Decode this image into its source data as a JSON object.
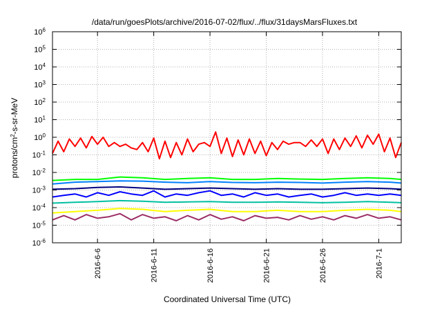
{
  "chart_data": {
    "type": "line",
    "title": "/data/run/goesPlots/archive/2016-07-02/flux/../flux/31daysMarsFluxes.txt",
    "xlabel": "Coordinated Universal Time (UTC)",
    "ylabel": {
      "pre": "protons/cm",
      "sup": "2",
      "post": "-s-sr-MeV"
    },
    "y_scale": "log",
    "ylim": [
      1e-06,
      1000000.0
    ],
    "xlim": [
      "2016-06-02",
      "2016-07-03"
    ],
    "grid": true,
    "legend": "none",
    "x_ticks": [
      {
        "date": "2016-06-06",
        "label": "2016-6-6"
      },
      {
        "date": "2016-06-11",
        "label": "2016-6-11"
      },
      {
        "date": "2016-06-16",
        "label": "2016-6-16"
      },
      {
        "date": "2016-06-21",
        "label": "2016-6-21"
      },
      {
        "date": "2016-06-26",
        "label": "2016-6-26"
      },
      {
        "date": "2016-07-01",
        "label": "2016-7-1"
      }
    ],
    "y_ticks": [
      {
        "value": 1e-06,
        "base": "10",
        "exp": "-6"
      },
      {
        "value": 1e-05,
        "base": "10",
        "exp": "-5"
      },
      {
        "value": 0.0001,
        "base": "10",
        "exp": "-4"
      },
      {
        "value": 0.001,
        "base": "10",
        "exp": "-3"
      },
      {
        "value": 0.01,
        "base": "10",
        "exp": "-2"
      },
      {
        "value": 0.1,
        "base": "10",
        "exp": "-1"
      },
      {
        "value": 1,
        "base": "10",
        "exp": "0"
      },
      {
        "value": 10,
        "base": "10",
        "exp": "1"
      },
      {
        "value": 100,
        "base": "10",
        "exp": "2"
      },
      {
        "value": 1000,
        "base": "10",
        "exp": "3"
      },
      {
        "value": 10000,
        "base": "10",
        "exp": "4"
      },
      {
        "value": 100000,
        "base": "10",
        "exp": "5"
      },
      {
        "value": 1000000,
        "base": "10",
        "exp": "6"
      }
    ],
    "series": [
      {
        "color": "#ff0000",
        "x": [
          "2016-06-02",
          "2016-06-02T12:00",
          "2016-06-03",
          "2016-06-03T12:00",
          "2016-06-04",
          "2016-06-04T12:00",
          "2016-06-05",
          "2016-06-05T12:00",
          "2016-06-06",
          "2016-06-06T12:00",
          "2016-06-07",
          "2016-06-07T12:00",
          "2016-06-08",
          "2016-06-08T12:00",
          "2016-06-09",
          "2016-06-09T12:00",
          "2016-06-10",
          "2016-06-10T12:00",
          "2016-06-11",
          "2016-06-11T12:00",
          "2016-06-12",
          "2016-06-12T12:00",
          "2016-06-13",
          "2016-06-13T12:00",
          "2016-06-14",
          "2016-06-14T12:00",
          "2016-06-15",
          "2016-06-15T12:00",
          "2016-06-16",
          "2016-06-16T12:00",
          "2016-06-17",
          "2016-06-17T12:00",
          "2016-06-18",
          "2016-06-18T12:00",
          "2016-06-19",
          "2016-06-19T12:00",
          "2016-06-20",
          "2016-06-20T12:00",
          "2016-06-21",
          "2016-06-21T12:00",
          "2016-06-22",
          "2016-06-22T12:00",
          "2016-06-23",
          "2016-06-23T12:00",
          "2016-06-24",
          "2016-06-24T12:00",
          "2016-06-25",
          "2016-06-25T12:00",
          "2016-06-26",
          "2016-06-26T12:00",
          "2016-06-27",
          "2016-06-27T12:00",
          "2016-06-28",
          "2016-06-28T12:00",
          "2016-06-29",
          "2016-06-29T12:00",
          "2016-06-30",
          "2016-06-30T12:00",
          "2016-07-01",
          "2016-07-01T12:00",
          "2016-07-02",
          "2016-07-02T12:00",
          "2016-07-03"
        ],
        "y": [
          0.12,
          0.6,
          0.15,
          0.8,
          0.3,
          0.9,
          0.25,
          1.1,
          0.4,
          1.0,
          0.3,
          0.5,
          0.3,
          0.4,
          0.25,
          0.2,
          0.5,
          0.15,
          0.9,
          0.06,
          0.6,
          0.07,
          0.5,
          0.1,
          0.8,
          0.15,
          0.4,
          0.5,
          0.3,
          2.0,
          0.12,
          0.9,
          0.08,
          0.7,
          0.1,
          0.8,
          0.12,
          0.6,
          0.09,
          0.5,
          0.2,
          0.6,
          0.4,
          0.5,
          0.5,
          0.3,
          0.7,
          0.3,
          0.8,
          0.12,
          0.8,
          0.2,
          0.9,
          0.3,
          1.2,
          0.25,
          1.3,
          0.4,
          1.5,
          0.15,
          0.9,
          0.07,
          0.5
        ]
      },
      {
        "color": "#00ff00",
        "x": [
          "2016-06-02",
          "2016-06-04",
          "2016-06-06",
          "2016-06-08",
          "2016-06-10",
          "2016-06-12",
          "2016-06-14",
          "2016-06-16",
          "2016-06-18",
          "2016-06-20",
          "2016-06-22",
          "2016-06-24",
          "2016-06-26",
          "2016-06-28",
          "2016-06-30",
          "2016-07-02",
          "2016-07-03"
        ],
        "y": [
          0.0035,
          0.004,
          0.004,
          0.0055,
          0.005,
          0.004,
          0.0045,
          0.005,
          0.004,
          0.004,
          0.0045,
          0.0042,
          0.004,
          0.0045,
          0.005,
          0.0045,
          0.004
        ]
      },
      {
        "color": "#0080ff",
        "x": [
          "2016-06-02",
          "2016-06-04",
          "2016-06-06",
          "2016-06-08",
          "2016-06-10",
          "2016-06-12",
          "2016-06-14",
          "2016-06-16",
          "2016-06-18",
          "2016-06-20",
          "2016-06-22",
          "2016-06-24",
          "2016-06-26",
          "2016-06-28",
          "2016-06-30",
          "2016-07-02",
          "2016-07-03"
        ],
        "y": [
          0.0022,
          0.0028,
          0.003,
          0.0033,
          0.0032,
          0.0028,
          0.0026,
          0.003,
          0.0027,
          0.0026,
          0.0028,
          0.0027,
          0.0025,
          0.0028,
          0.003,
          0.0028,
          0.0025
        ]
      },
      {
        "color": "#000080",
        "x": [
          "2016-06-02",
          "2016-06-04",
          "2016-06-06",
          "2016-06-08",
          "2016-06-10",
          "2016-06-12",
          "2016-06-14",
          "2016-06-16",
          "2016-06-18",
          "2016-06-20",
          "2016-06-22",
          "2016-06-24",
          "2016-06-26",
          "2016-06-28",
          "2016-06-30",
          "2016-07-02",
          "2016-07-03"
        ],
        "y": [
          0.0011,
          0.0012,
          0.0014,
          0.0015,
          0.0013,
          0.0011,
          0.0012,
          0.0013,
          0.0012,
          0.0011,
          0.0012,
          0.0011,
          0.0011,
          0.0012,
          0.0013,
          0.0012,
          0.0011
        ]
      },
      {
        "color": "#0000ff",
        "x": [
          "2016-06-02",
          "2016-06-03",
          "2016-06-04",
          "2016-06-05",
          "2016-06-06",
          "2016-06-07",
          "2016-06-08",
          "2016-06-09",
          "2016-06-10",
          "2016-06-11",
          "2016-06-12",
          "2016-06-13",
          "2016-06-14",
          "2016-06-15",
          "2016-06-16",
          "2016-06-17",
          "2016-06-18",
          "2016-06-19",
          "2016-06-20",
          "2016-06-21",
          "2016-06-22",
          "2016-06-23",
          "2016-06-24",
          "2016-06-25",
          "2016-06-26",
          "2016-06-27",
          "2016-06-28",
          "2016-06-29",
          "2016-06-30",
          "2016-07-01",
          "2016-07-02",
          "2016-07-03"
        ],
        "y": [
          0.0004,
          0.0005,
          0.0006,
          0.0004,
          0.0007,
          0.0005,
          0.0008,
          0.0006,
          0.0005,
          0.0009,
          0.0004,
          0.0006,
          0.0005,
          0.0007,
          0.0009,
          0.0005,
          0.0006,
          0.0004,
          0.0007,
          0.0005,
          0.0006,
          0.0004,
          0.0005,
          0.0006,
          0.0004,
          0.0005,
          0.0007,
          0.0005,
          0.0006,
          0.0005,
          0.0006,
          0.0005
        ]
      },
      {
        "color": "#00c0a0",
        "x": [
          "2016-06-02",
          "2016-06-04",
          "2016-06-06",
          "2016-06-08",
          "2016-06-10",
          "2016-06-12",
          "2016-06-14",
          "2016-06-16",
          "2016-06-18",
          "2016-06-20",
          "2016-06-22",
          "2016-06-24",
          "2016-06-26",
          "2016-06-28",
          "2016-06-30",
          "2016-07-02",
          "2016-07-03"
        ],
        "y": [
          0.00018,
          0.0002,
          0.00022,
          0.00025,
          0.00023,
          0.0002,
          0.00021,
          0.00022,
          0.0002,
          0.0002,
          0.00021,
          0.0002,
          0.00019,
          0.0002,
          0.00022,
          0.0002,
          0.00019
        ]
      },
      {
        "color": "#ffff00",
        "x": [
          "2016-06-02",
          "2016-06-04",
          "2016-06-06",
          "2016-06-08",
          "2016-06-10",
          "2016-06-12",
          "2016-06-14",
          "2016-06-16",
          "2016-06-18",
          "2016-06-20",
          "2016-06-22",
          "2016-06-24",
          "2016-06-26",
          "2016-06-28",
          "2016-06-30",
          "2016-07-02",
          "2016-07-03"
        ],
        "y": [
          5e-05,
          6e-05,
          7e-05,
          9e-05,
          8e-05,
          6e-05,
          7e-05,
          8e-05,
          6e-05,
          6e-05,
          7e-05,
          6e-05,
          6e-05,
          7e-05,
          8e-05,
          7e-05,
          6e-05
        ]
      },
      {
        "color": "#9b2d65",
        "x": [
          "2016-06-02",
          "2016-06-03",
          "2016-06-04",
          "2016-06-05",
          "2016-06-06",
          "2016-06-07",
          "2016-06-08",
          "2016-06-09",
          "2016-06-10",
          "2016-06-11",
          "2016-06-12",
          "2016-06-13",
          "2016-06-14",
          "2016-06-15",
          "2016-06-16",
          "2016-06-17",
          "2016-06-18",
          "2016-06-19",
          "2016-06-20",
          "2016-06-21",
          "2016-06-22",
          "2016-06-23",
          "2016-06-24",
          "2016-06-25",
          "2016-06-26",
          "2016-06-27",
          "2016-06-28",
          "2016-06-29",
          "2016-06-30",
          "2016-07-01",
          "2016-07-02",
          "2016-07-03"
        ],
        "y": [
          2e-05,
          3.5e-05,
          2e-05,
          4e-05,
          2.5e-05,
          3e-05,
          4.5e-05,
          2e-05,
          4e-05,
          2.5e-05,
          3e-05,
          1.8e-05,
          3.5e-05,
          2e-05,
          4e-05,
          2.2e-05,
          3e-05,
          1.8e-05,
          3.5e-05,
          2.5e-05,
          2.8e-05,
          2e-05,
          3.5e-05,
          2.2e-05,
          3e-05,
          2e-05,
          3.5e-05,
          2.5e-05,
          4e-05,
          2.5e-05,
          3e-05,
          2e-05
        ]
      }
    ]
  }
}
